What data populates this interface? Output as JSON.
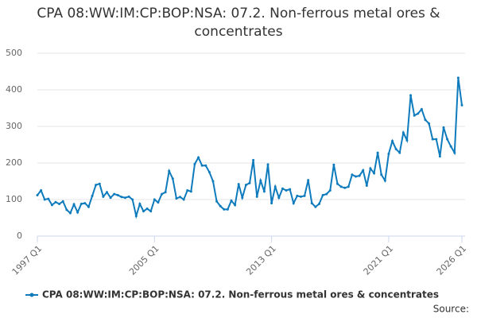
{
  "chart_data": {
    "type": "line",
    "title": "CPA 08:WW:IM:CP:BOP:NSA: 07.2. Non-ferrous metal ores & concentrates",
    "source": "Source:",
    "categories": [
      "1997 Q1",
      null,
      null,
      null,
      null,
      null,
      null,
      null,
      null,
      null,
      null,
      null,
      null,
      null,
      null,
      null,
      null,
      null,
      null,
      null,
      null,
      null,
      null,
      null,
      null,
      null,
      null,
      null,
      null,
      null,
      null,
      null,
      "2005 Q1",
      null,
      null,
      null,
      null,
      null,
      null,
      null,
      null,
      null,
      null,
      null,
      null,
      null,
      null,
      null,
      null,
      null,
      null,
      null,
      null,
      null,
      null,
      null,
      null,
      null,
      null,
      null,
      null,
      null,
      null,
      null,
      "2013 Q1",
      null,
      null,
      null,
      null,
      null,
      null,
      null,
      null,
      null,
      null,
      null,
      null,
      null,
      null,
      null,
      null,
      null,
      null,
      null,
      null,
      null,
      null,
      null,
      null,
      null,
      null,
      null,
      null,
      null,
      null,
      null,
      "2021 Q1",
      null,
      null,
      null,
      null,
      null,
      null,
      null,
      null,
      null,
      null,
      null,
      null,
      null,
      null,
      null,
      null,
      null,
      null,
      null,
      "2026 Q1"
    ],
    "series": [
      {
        "name": "CPA 08:WW:IM:CP:BOP:NSA: 07.2. Non-ferrous metal ores & concentrates",
        "color": "#0e7bbd",
        "values": [
          112,
          125,
          100,
          102,
          85,
          93,
          88,
          95,
          72,
          63,
          87,
          65,
          88,
          90,
          80,
          110,
          140,
          143,
          108,
          120,
          105,
          115,
          112,
          107,
          105,
          108,
          100,
          55,
          88,
          68,
          75,
          68,
          100,
          92,
          115,
          120,
          178,
          157,
          103,
          107,
          100,
          125,
          122,
          197,
          215,
          193,
          193,
          175,
          150,
          95,
          82,
          73,
          73,
          97,
          85,
          142,
          105,
          140,
          145,
          208,
          108,
          152,
          122,
          196,
          90,
          135,
          105,
          130,
          125,
          128,
          90,
          110,
          108,
          110,
          153,
          90,
          80,
          88,
          112,
          115,
          125,
          195,
          143,
          135,
          132,
          135,
          168,
          163,
          165,
          180,
          138,
          185,
          172,
          228,
          168,
          152,
          225,
          260,
          238,
          228,
          283,
          262,
          385,
          330,
          335,
          347,
          318,
          308,
          265,
          265,
          218,
          297,
          265,
          245,
          228,
          433,
          358
        ]
      }
    ],
    "ylim": [
      0,
      500
    ],
    "yticks": [
      0,
      100,
      200,
      300,
      400,
      500
    ],
    "grid": true
  }
}
